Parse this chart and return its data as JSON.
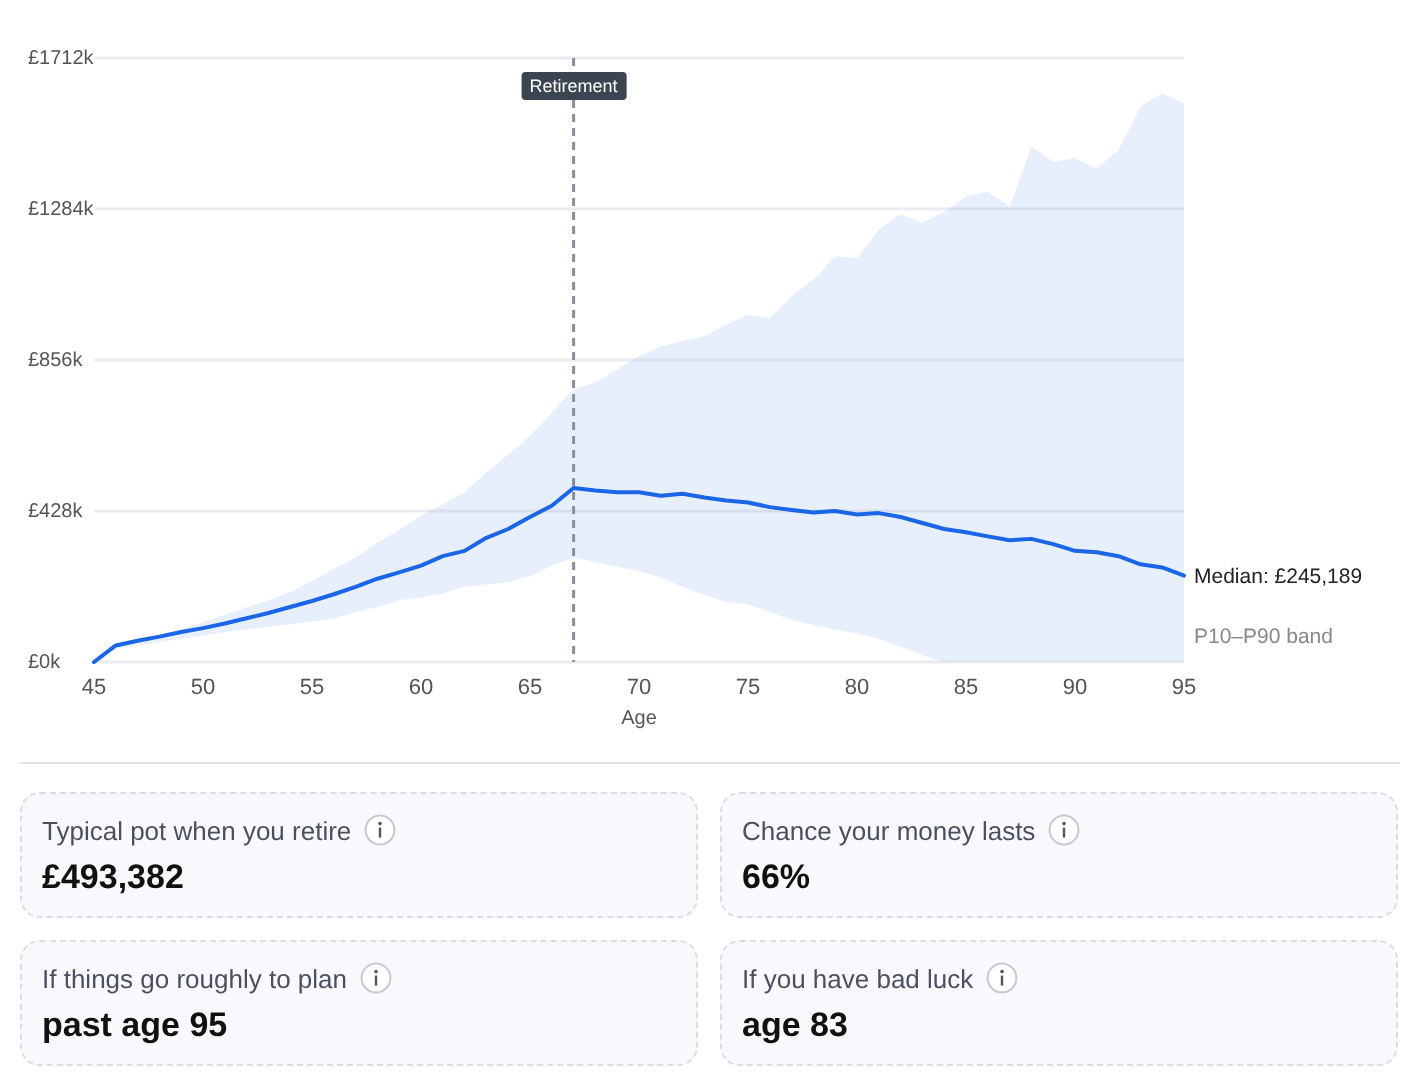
{
  "chart_data": {
    "type": "line",
    "xlabel": "Age",
    "x": [
      45,
      46,
      47,
      48,
      49,
      50,
      51,
      52,
      53,
      54,
      55,
      56,
      57,
      58,
      59,
      60,
      61,
      62,
      63,
      64,
      65,
      66,
      67,
      68,
      69,
      70,
      71,
      72,
      73,
      74,
      75,
      76,
      77,
      78,
      79,
      80,
      81,
      82,
      83,
      84,
      85,
      86,
      87,
      88,
      89,
      90,
      91,
      92,
      93,
      94,
      95
    ],
    "series": [
      {
        "color": "#1a66e6",
        "values": [
          0,
          47,
          60,
          72,
          85,
          96,
          109,
          124,
          139,
          156,
          173,
          192,
          213,
          236,
          254,
          273,
          300,
          315,
          352,
          377,
          411,
          443,
          493,
          486,
          481,
          481,
          471,
          477,
          466,
          458,
          452,
          439,
          431,
          424,
          428,
          418,
          422,
          411,
          394,
          377,
          368,
          356,
          345,
          349,
          334,
          315,
          311,
          300,
          277,
          268,
          245
        ],
        "lower": [
          0,
          38,
          47,
          57,
          66,
          75,
          85,
          92,
          100,
          107,
          115,
          123,
          141,
          156,
          175,
          183,
          194,
          213,
          220,
          226,
          243,
          273,
          296,
          283,
          270,
          258,
          239,
          213,
          189,
          170,
          164,
          141,
          119,
          104,
          92,
          81,
          66,
          43,
          19,
          0,
          0,
          0,
          0,
          0,
          0,
          0,
          0,
          0,
          0,
          0,
          0
        ],
        "upper": [
          0,
          51,
          62,
          77,
          92,
          113,
          134,
          155,
          175,
          198,
          230,
          264,
          296,
          339,
          375,
          415,
          447,
          481,
          537,
          588,
          641,
          707,
          773,
          792,
          829,
          867,
          895,
          910,
          924,
          956,
          984,
          975,
          1037,
          1084,
          1150,
          1145,
          1226,
          1269,
          1244,
          1276,
          1320,
          1333,
          1291,
          1461,
          1418,
          1427,
          1399,
          1452,
          1574,
          1612,
          1583
        ]
      }
    ],
    "xlim": [
      45,
      95
    ],
    "xticks": [
      45,
      50,
      55,
      60,
      65,
      70,
      75,
      80,
      85,
      90,
      95
    ],
    "ylim": [
      0,
      1712
    ],
    "yticks": [
      {
        "value": 0,
        "label": "£0k"
      },
      {
        "value": 428,
        "label": "£428k"
      },
      {
        "value": 856,
        "label": "£856k"
      },
      {
        "value": 1284,
        "label": "£1284k"
      },
      {
        "value": 1712,
        "label": "£1712k"
      }
    ],
    "grid": "y",
    "marker": "none",
    "line_style": "solid",
    "ref_lines": [
      {
        "axis": "x",
        "value": 67,
        "label": "Retirement",
        "color": "#8a8f99",
        "line_style": "dashed"
      }
    ],
    "annotations": [
      {
        "text": "Median: £245,189",
        "x": 95,
        "y": 245.189
      },
      "P10–P90 band",
      "Typical pot when you retire",
      "£493,382",
      "Chance your money lasts",
      "66%",
      "If things go roughly to plan",
      "past age 95",
      "If you have bad luck",
      "age 83"
    ]
  }
}
